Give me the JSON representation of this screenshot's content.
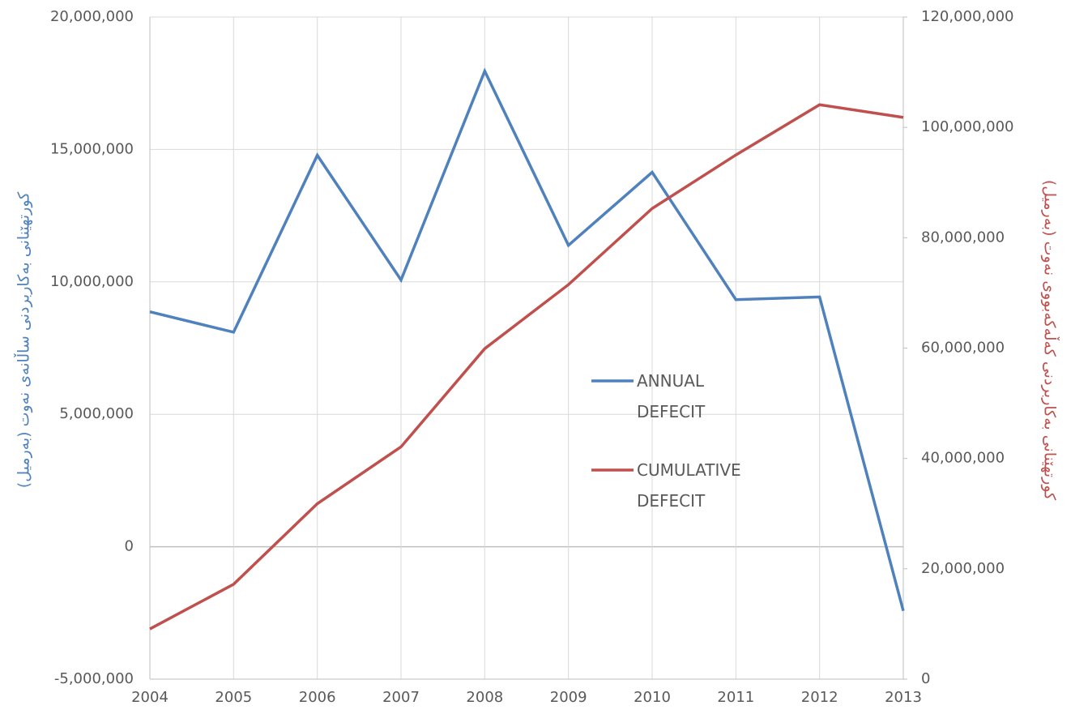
{
  "chart_data": {
    "type": "line",
    "x": [
      2004,
      2005,
      2006,
      2007,
      2008,
      2009,
      2010,
      2011,
      2012,
      2013
    ],
    "xlim": [
      2004,
      2013
    ],
    "xticks": [
      2004,
      2005,
      2006,
      2007,
      2008,
      2009,
      2010,
      2011,
      2012,
      2013
    ],
    "ylabel": "کورتهێنانی بەکاربردنی ساڵانەی نەوت (بەرمیل)",
    "y2label": "کورتهێنانی بەکاربردنی کەڵەکەبووی نەوت (بەرمیل)",
    "ylim": [
      -5000000,
      20000000
    ],
    "yticks": [
      {
        "value": -5000000,
        "label": "-5,000,000"
      },
      0,
      {
        "value": 5000000,
        "label": "5,000,000"
      },
      {
        "value": 10000000,
        "label": "10,000,000"
      },
      {
        "value": 15000000,
        "label": "15,000,000"
      },
      {
        "value": 20000000,
        "label": "20,000,000"
      }
    ],
    "y2lim": [
      0,
      120000000
    ],
    "y2ticks": [
      0,
      {
        "value": 20000000,
        "label": "20,000,000"
      },
      {
        "value": 40000000,
        "label": "40,000,000"
      },
      {
        "value": 60000000,
        "label": "60,000,000"
      },
      {
        "value": 80000000,
        "label": "80,000,000"
      },
      {
        "value": 100000000,
        "label": "100,000,000"
      },
      {
        "value": 120000000,
        "label": "120,000,000"
      }
    ],
    "grid": true,
    "legend": "right",
    "series": [
      {
        "name": "ANNUAL DEFECIT",
        "color": "#4f81bd",
        "values": [
          8870000,
          8100000,
          14780000,
          10070000,
          17960000,
          11380000,
          14140000,
          9330000,
          9430000,
          -2420000
        ]
      },
      {
        "name": "CUMULATIVE DEFECIT",
        "color": "#c0504d",
        "axis": "y2",
        "values": [
          9100000,
          17200000,
          31800000,
          42100000,
          59900000,
          71500000,
          85300000,
          95000000,
          104100000,
          101800000
        ]
      }
    ]
  }
}
